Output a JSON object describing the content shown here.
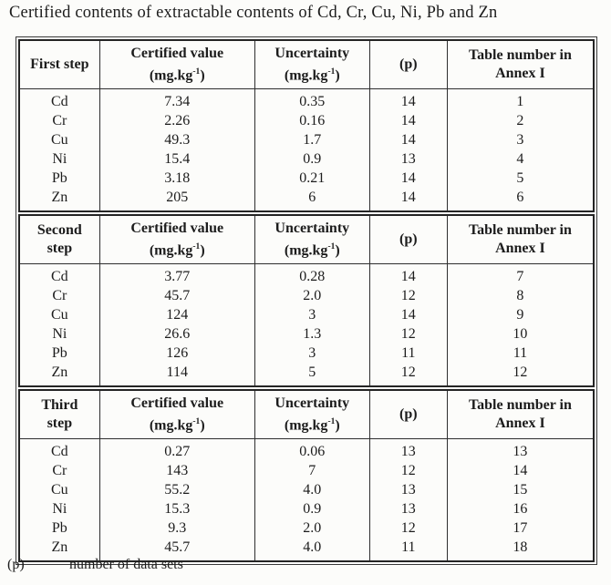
{
  "title": "Certified contents of extractable contents of Cd, Cr, Cu, Ni, Pb and Zn",
  "header": {
    "certified_value": "Certified value",
    "uncertainty": "Uncertainty",
    "unit_prefix": "(mg.kg",
    "unit_sup": "-1",
    "unit_suffix": ")",
    "p_label": "(p)",
    "table_number_line1": "Table number in",
    "table_number_line2": "Annex I"
  },
  "sections": [
    {
      "step_line1": "First step",
      "step_line2": "",
      "rows": [
        {
          "element": "Cd",
          "certified": "7.34",
          "uncertainty": "0.35",
          "p": "14",
          "annex": "1"
        },
        {
          "element": "Cr",
          "certified": "2.26",
          "uncertainty": "0.16",
          "p": "14",
          "annex": "2"
        },
        {
          "element": "Cu",
          "certified": "49.3",
          "uncertainty": "1.7",
          "p": "14",
          "annex": "3"
        },
        {
          "element": "Ni",
          "certified": "15.4",
          "uncertainty": "0.9",
          "p": "13",
          "annex": "4"
        },
        {
          "element": "Pb",
          "certified": "3.18",
          "uncertainty": "0.21",
          "p": "14",
          "annex": "5"
        },
        {
          "element": "Zn",
          "certified": "205",
          "uncertainty": "6",
          "p": "14",
          "annex": "6"
        }
      ]
    },
    {
      "step_line1": "Second",
      "step_line2": "step",
      "rows": [
        {
          "element": "Cd",
          "certified": "3.77",
          "uncertainty": "0.28",
          "p": "14",
          "annex": "7"
        },
        {
          "element": "Cr",
          "certified": "45.7",
          "uncertainty": "2.0",
          "p": "12",
          "annex": "8"
        },
        {
          "element": "Cu",
          "certified": "124",
          "uncertainty": "3",
          "p": "14",
          "annex": "9"
        },
        {
          "element": "Ni",
          "certified": "26.6",
          "uncertainty": "1.3",
          "p": "12",
          "annex": "10"
        },
        {
          "element": "Pb",
          "certified": "126",
          "uncertainty": "3",
          "p": "11",
          "annex": "11"
        },
        {
          "element": "Zn",
          "certified": "114",
          "uncertainty": "5",
          "p": "12",
          "annex": "12"
        }
      ]
    },
    {
      "step_line1": "Third",
      "step_line2": "step",
      "rows": [
        {
          "element": "Cd",
          "certified": "0.27",
          "uncertainty": "0.06",
          "p": "13",
          "annex": "13"
        },
        {
          "element": "Cr",
          "certified": "143",
          "uncertainty": "7",
          "p": "12",
          "annex": "14"
        },
        {
          "element": "Cu",
          "certified": "55.2",
          "uncertainty": "4.0",
          "p": "13",
          "annex": "15"
        },
        {
          "element": "Ni",
          "certified": "15.3",
          "uncertainty": "0.9",
          "p": "13",
          "annex": "16"
        },
        {
          "element": "Pb",
          "certified": "9.3",
          "uncertainty": "2.0",
          "p": "12",
          "annex": "17"
        },
        {
          "element": "Zn",
          "certified": "45.7",
          "uncertainty": "4.0",
          "p": "11",
          "annex": "18"
        }
      ]
    }
  ],
  "footnote": {
    "symbol": "(p)",
    "text": "number of data sets"
  },
  "colors": {
    "text": "#1c1c1c",
    "border": "#2a2a2a",
    "background": "#fcfcfa"
  }
}
